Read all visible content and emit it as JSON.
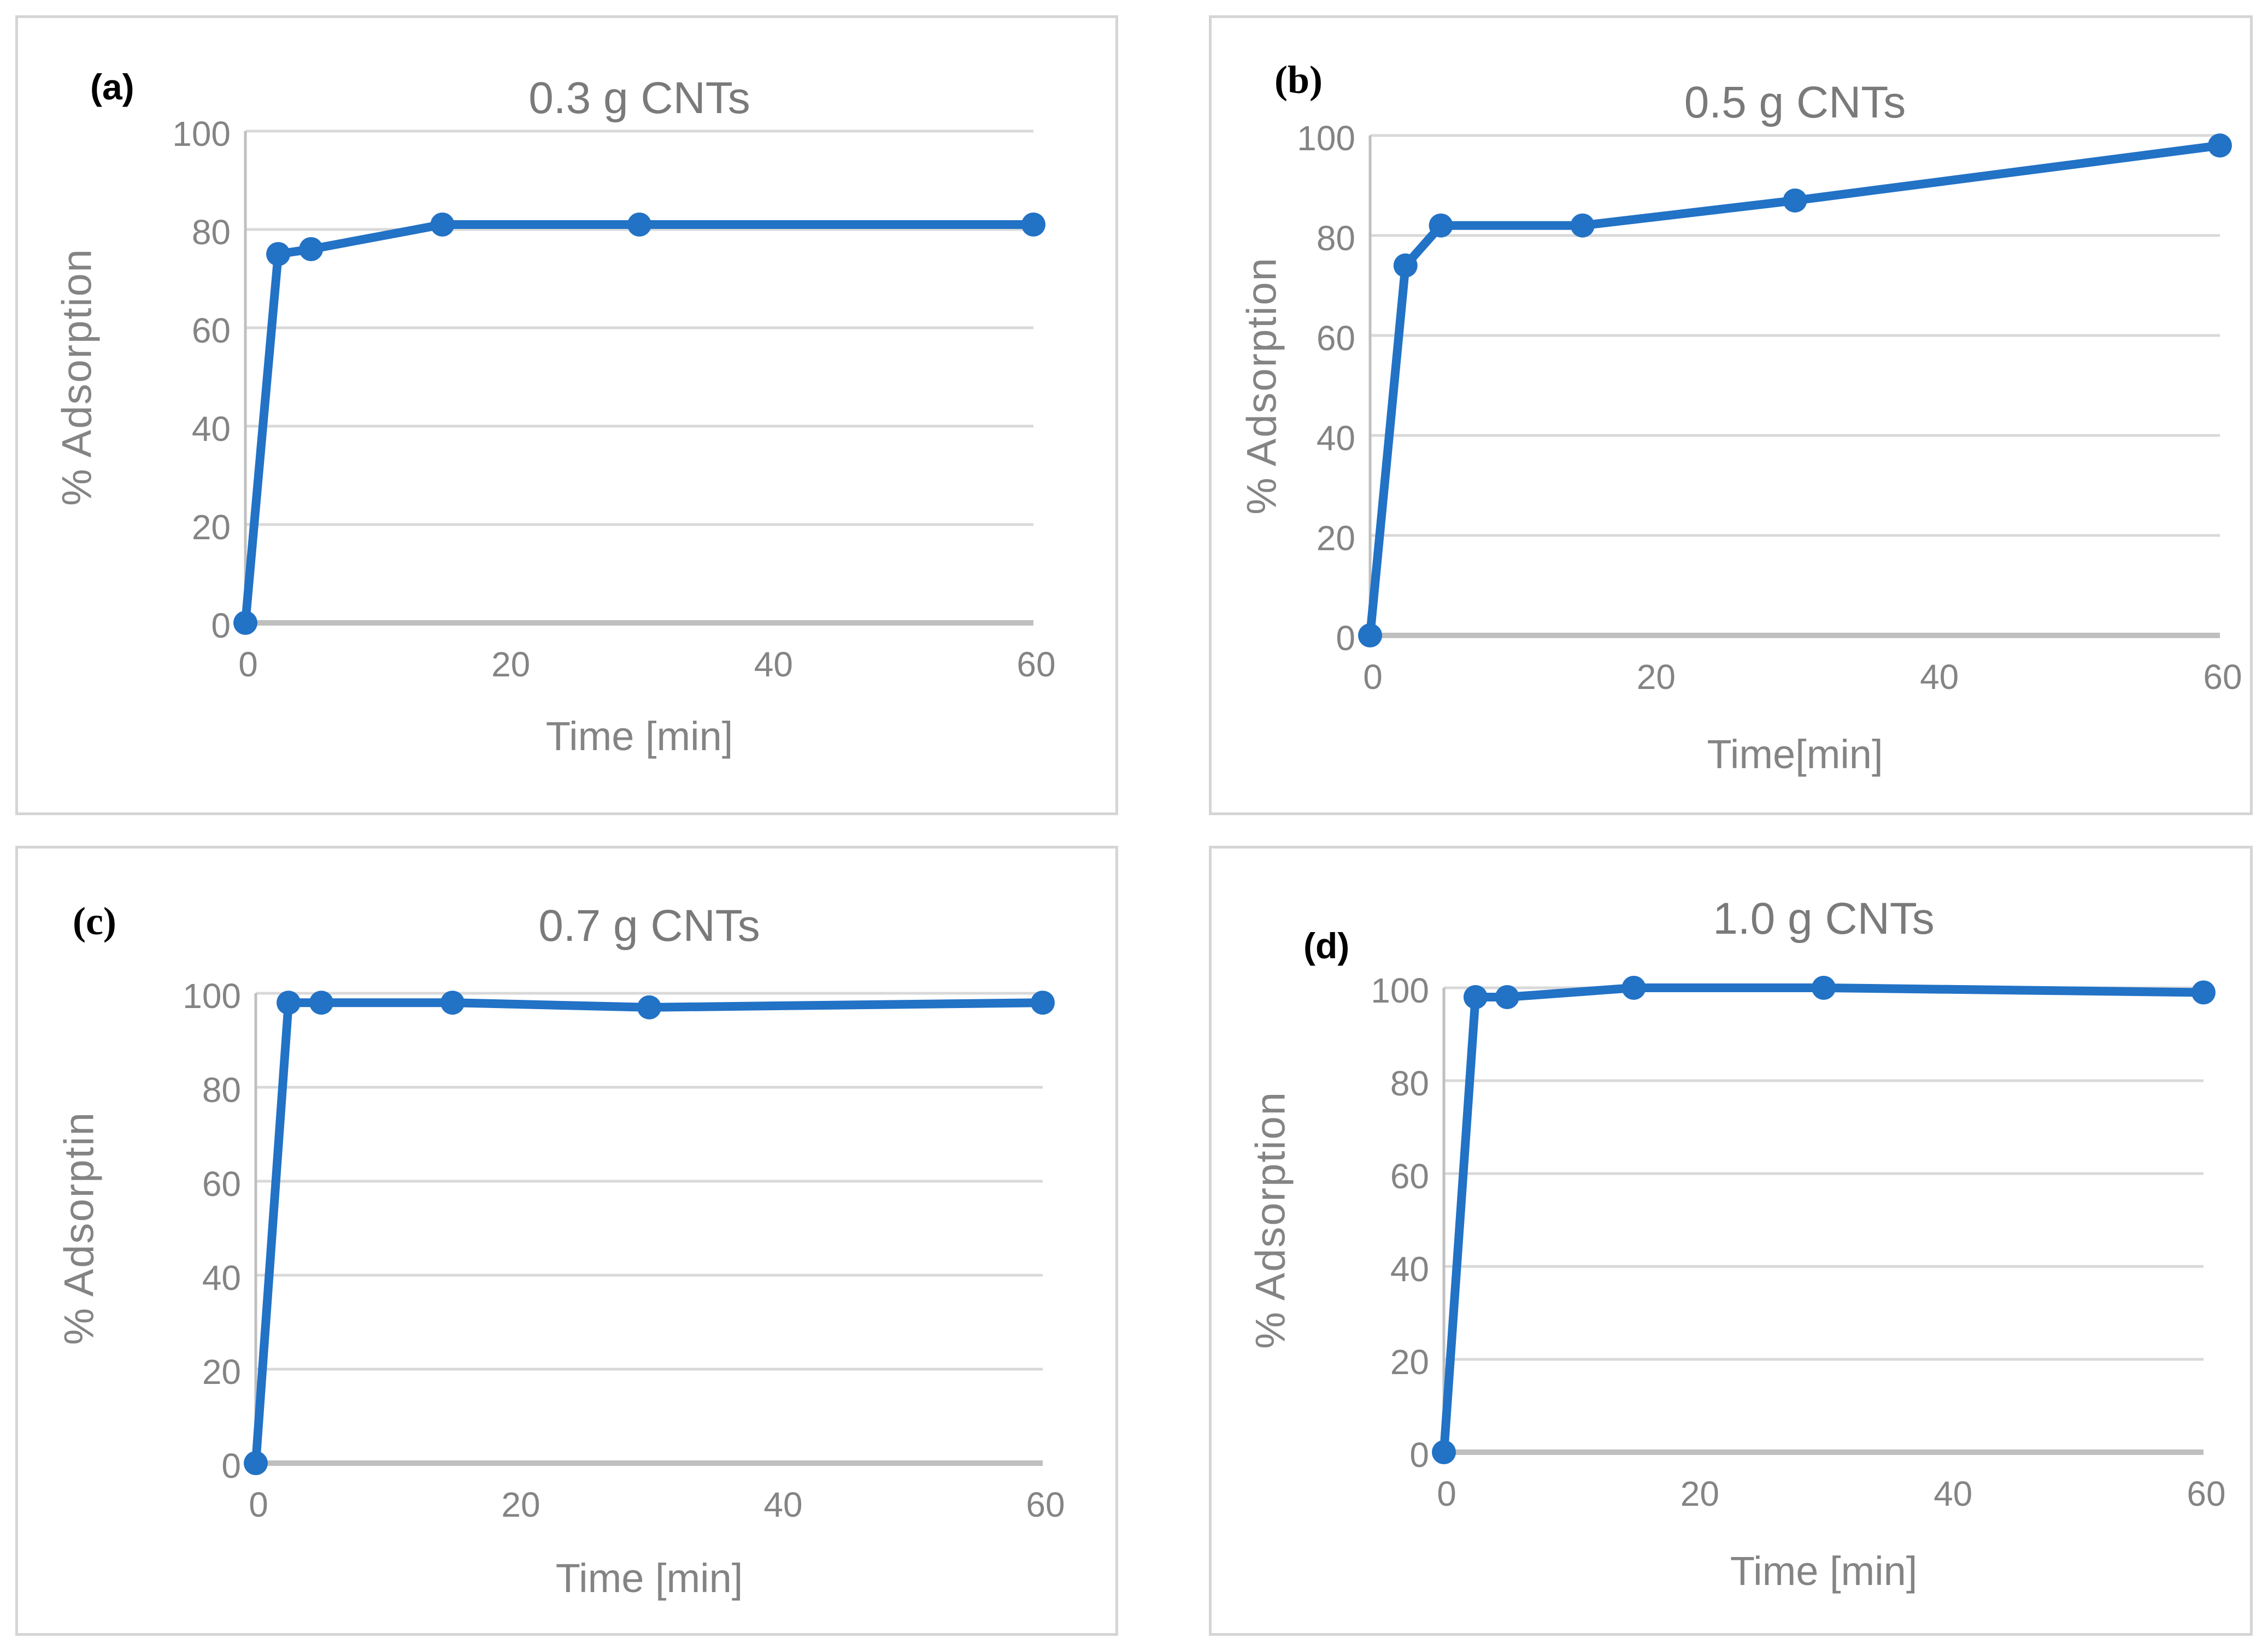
{
  "figure": {
    "description": "Four-panel line chart figure of adsorption kinetics on CNTs",
    "panels": 4
  },
  "colors": {
    "series": "#2272C6",
    "gridline": "#D9D9D9",
    "axis_line": "#BFBFBF",
    "tick_text": "#848484",
    "title_text": "#7A7A7A",
    "panel_border": "#D5D5D5",
    "panel_letter": "#000000",
    "background": "#FFFFFF"
  },
  "chart_data": [
    {
      "id": "a",
      "type": "line",
      "panel_label": "(a)",
      "title": "0.3 g CNTs",
      "xlabel": "Time [min]",
      "ylabel": "% Adsorption",
      "x": [
        0,
        2.5,
        5,
        15,
        30,
        60
      ],
      "y": [
        0,
        75,
        76,
        81,
        81,
        81
      ],
      "xlim": [
        0,
        60
      ],
      "ylim": [
        0,
        100
      ],
      "xticks": [
        0,
        20,
        40,
        60
      ],
      "yticks": [
        0,
        20,
        40,
        60,
        80,
        100
      ],
      "grid": "horizontal",
      "legend": "none",
      "marker": "circle"
    },
    {
      "id": "b",
      "type": "line",
      "panel_label": "(b)",
      "title": "0.5 g CNTs",
      "xlabel": "Time[min]",
      "ylabel": "% Adsorption",
      "x": [
        0,
        2.5,
        5,
        15,
        30,
        60
      ],
      "y": [
        0,
        74,
        82,
        82,
        87,
        98
      ],
      "xlim": [
        0,
        60
      ],
      "ylim": [
        0,
        100
      ],
      "xticks": [
        0,
        20,
        40,
        60
      ],
      "yticks": [
        0,
        20,
        40,
        60,
        80,
        100
      ],
      "grid": "horizontal",
      "legend": "none",
      "marker": "circle"
    },
    {
      "id": "c",
      "type": "line",
      "panel_label": "(c)",
      "title": "0.7 g CNTs",
      "xlabel": "Time [min]",
      "ylabel": "% Adsorptin",
      "x": [
        0,
        2.5,
        5,
        15,
        30,
        60
      ],
      "y": [
        0,
        98,
        98,
        98,
        97,
        98
      ],
      "xlim": [
        0,
        60
      ],
      "ylim": [
        0,
        100
      ],
      "xticks": [
        0,
        20,
        40,
        60
      ],
      "yticks": [
        0,
        20,
        40,
        60,
        80,
        100
      ],
      "grid": "horizontal",
      "legend": "none",
      "marker": "circle"
    },
    {
      "id": "d",
      "type": "line",
      "panel_label": "(d)",
      "title": "1.0 g CNTs",
      "xlabel": "Time [min]",
      "ylabel": "% Adsorption",
      "x": [
        0,
        2.5,
        5,
        15,
        30,
        60
      ],
      "y": [
        0,
        98,
        98,
        100,
        100,
        99
      ],
      "xlim": [
        0,
        60
      ],
      "ylim": [
        0,
        100
      ],
      "xticks": [
        0,
        20,
        40,
        60
      ],
      "yticks": [
        0,
        20,
        40,
        60,
        80,
        100
      ],
      "grid": "horizontal",
      "legend": "none",
      "marker": "circle"
    }
  ]
}
